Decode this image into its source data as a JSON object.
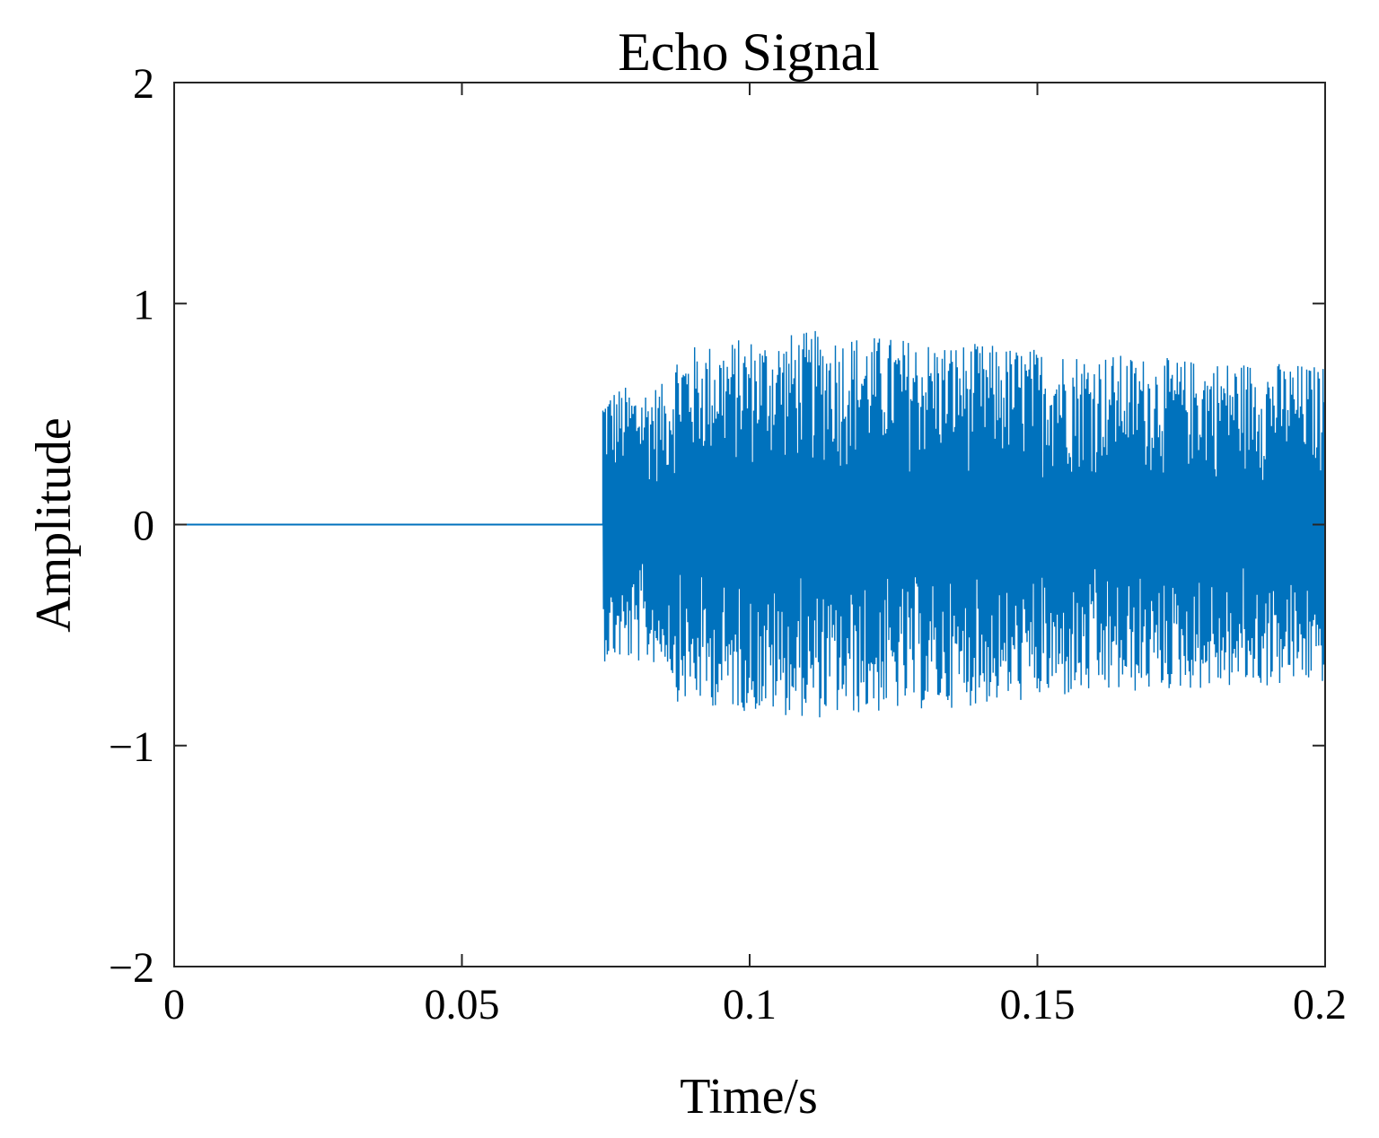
{
  "chart_data": {
    "type": "line",
    "title": "Echo Signal",
    "xlabel": "Time/s",
    "ylabel": "Amplitude",
    "xlim": [
      0,
      0.2
    ],
    "ylim": [
      -2,
      2
    ],
    "x_ticks": [
      0,
      0.05,
      0.1,
      0.15,
      0.2
    ],
    "x_tick_labels": [
      "0",
      "0.05",
      "0.1",
      "0.15",
      "0.2"
    ],
    "y_ticks": [
      -2,
      -1,
      0,
      1,
      2
    ],
    "y_tick_labels": [
      "−2",
      "−1",
      "0",
      "1",
      "2"
    ],
    "grid": false,
    "series": [
      {
        "color": "#0072BD",
        "description": "zero until ~0.0745 s, then dense oscillation",
        "onset_time": 0.0745,
        "envelope": {
          "t": [
            0.0745,
            0.086,
            0.087,
            0.1,
            0.112,
            0.125,
            0.15,
            0.175,
            0.19,
            0.2
          ],
          "amplitude": [
            0.62,
            0.64,
            0.8,
            0.85,
            0.88,
            0.85,
            0.8,
            0.75,
            0.74,
            0.72
          ]
        }
      }
    ]
  }
}
